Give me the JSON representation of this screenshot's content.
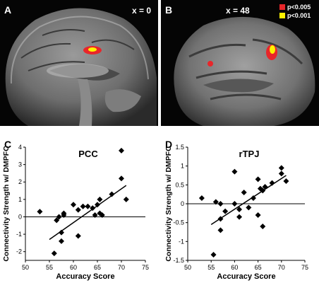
{
  "panels": {
    "A": {
      "letter": "A",
      "slice": "x = 0"
    },
    "B": {
      "letter": "B",
      "slice": "x = 48",
      "legend": [
        {
          "label": "p<0.005",
          "color": "#e8262a"
        },
        {
          "label": "p<0.001",
          "color": "#fff200"
        }
      ]
    },
    "C": {
      "letter": "C"
    },
    "D": {
      "letter": "D"
    }
  },
  "chart_data": [
    {
      "type": "scatter",
      "title": "PCC",
      "xlabel": "Accuracy Score",
      "ylabel": "Connectivity Strength w/ DMPFC",
      "xlim": [
        50,
        75
      ],
      "ylim": [
        -2.5,
        4
      ],
      "xticks": [
        50,
        55,
        60,
        65,
        70,
        75
      ],
      "yticks": [
        -2,
        -1,
        0,
        1,
        2,
        3,
        4
      ],
      "grid": false,
      "points": [
        [
          53,
          0.3
        ],
        [
          56,
          -2.1
        ],
        [
          56.5,
          -0.2
        ],
        [
          57,
          0.0
        ],
        [
          57.5,
          -1.4
        ],
        [
          57.5,
          -0.9
        ],
        [
          58,
          0.1
        ],
        [
          58,
          0.2
        ],
        [
          60,
          0.7
        ],
        [
          61,
          -1.1
        ],
        [
          61,
          0.4
        ],
        [
          62,
          0.6
        ],
        [
          63,
          0.6
        ],
        [
          64,
          0.5
        ],
        [
          64.5,
          0.1
        ],
        [
          65,
          0.7
        ],
        [
          65.5,
          0.2
        ],
        [
          65.5,
          1.0
        ],
        [
          66,
          0.1
        ],
        [
          68,
          1.3
        ],
        [
          70,
          3.8
        ],
        [
          70,
          2.2
        ],
        [
          71,
          1.0
        ]
      ],
      "fit_line": [
        [
          55,
          -1.3
        ],
        [
          71,
          1.8
        ]
      ]
    },
    {
      "type": "scatter",
      "title": "rTPJ",
      "xlabel": "Accuracy Score",
      "ylabel": "Connectivity Strength w/ DMPFC",
      "xlim": [
        50,
        75
      ],
      "ylim": [
        -1.5,
        1.5
      ],
      "xticks": [
        50,
        55,
        60,
        65,
        70,
        75
      ],
      "yticks": [
        -1.5,
        -1,
        -0.5,
        0,
        0.5,
        1,
        1.5
      ],
      "grid": false,
      "points": [
        [
          53,
          0.15
        ],
        [
          55.5,
          -1.35
        ],
        [
          56,
          0.05
        ],
        [
          57,
          0.0
        ],
        [
          57,
          -0.4
        ],
        [
          57,
          -0.7
        ],
        [
          58,
          -0.2
        ],
        [
          60,
          0.85
        ],
        [
          60,
          0.0
        ],
        [
          61,
          -0.35
        ],
        [
          61,
          -0.15
        ],
        [
          62,
          0.3
        ],
        [
          63,
          -0.1
        ],
        [
          64,
          0.15
        ],
        [
          65,
          -0.3
        ],
        [
          65,
          0.65
        ],
        [
          65.5,
          0.4
        ],
        [
          66,
          -0.6
        ],
        [
          66,
          0.35
        ],
        [
          66.5,
          0.45
        ],
        [
          68,
          0.55
        ],
        [
          70,
          0.95
        ],
        [
          70,
          0.8
        ],
        [
          71,
          0.6
        ]
      ],
      "fit_line": [
        [
          55,
          -0.55
        ],
        [
          71,
          0.75
        ]
      ]
    }
  ]
}
